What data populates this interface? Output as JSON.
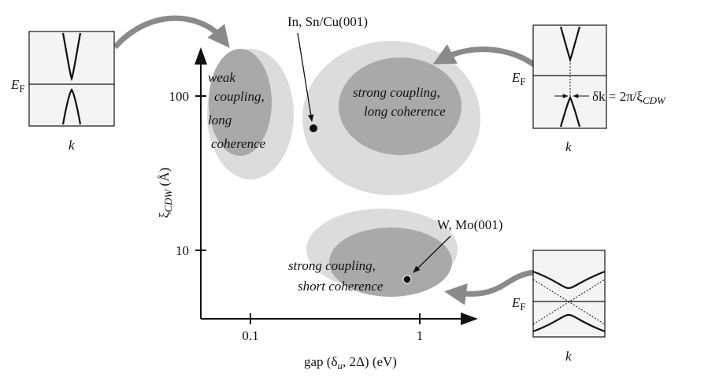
{
  "axes": {
    "x_label": {
      "main": "gap (δ",
      "sub": "u",
      "rest": ", 2Δ) (eV)"
    },
    "y_label": {
      "main": "ξ",
      "sub": "CDW",
      "rest": " (Å)"
    },
    "x_ticks": [
      "0.1",
      "1"
    ],
    "y_ticks": [
      "100",
      "10"
    ]
  },
  "regions": [
    {
      "lines": [
        "weak",
        "coupling,",
        "long",
        "coherence"
      ]
    },
    {
      "lines": [
        "strong coupling,",
        "long coherence"
      ]
    },
    {
      "lines": [
        "strong coupling,",
        "short coherence"
      ]
    }
  ],
  "annotations": [
    "In, Sn/Cu(001)",
    "W, Mo(001)"
  ],
  "insets": [
    {
      "fermi": {
        "main": "E",
        "sub": "F"
      },
      "axis": "k"
    },
    {
      "fermi": {
        "main": "E",
        "sub": "F"
      },
      "axis": "k",
      "note": {
        "main": "δk = 2π/ξ",
        "sub": "CDW"
      }
    },
    {
      "fermi": {
        "main": "E",
        "sub": "F"
      },
      "axis": "k"
    }
  ]
}
